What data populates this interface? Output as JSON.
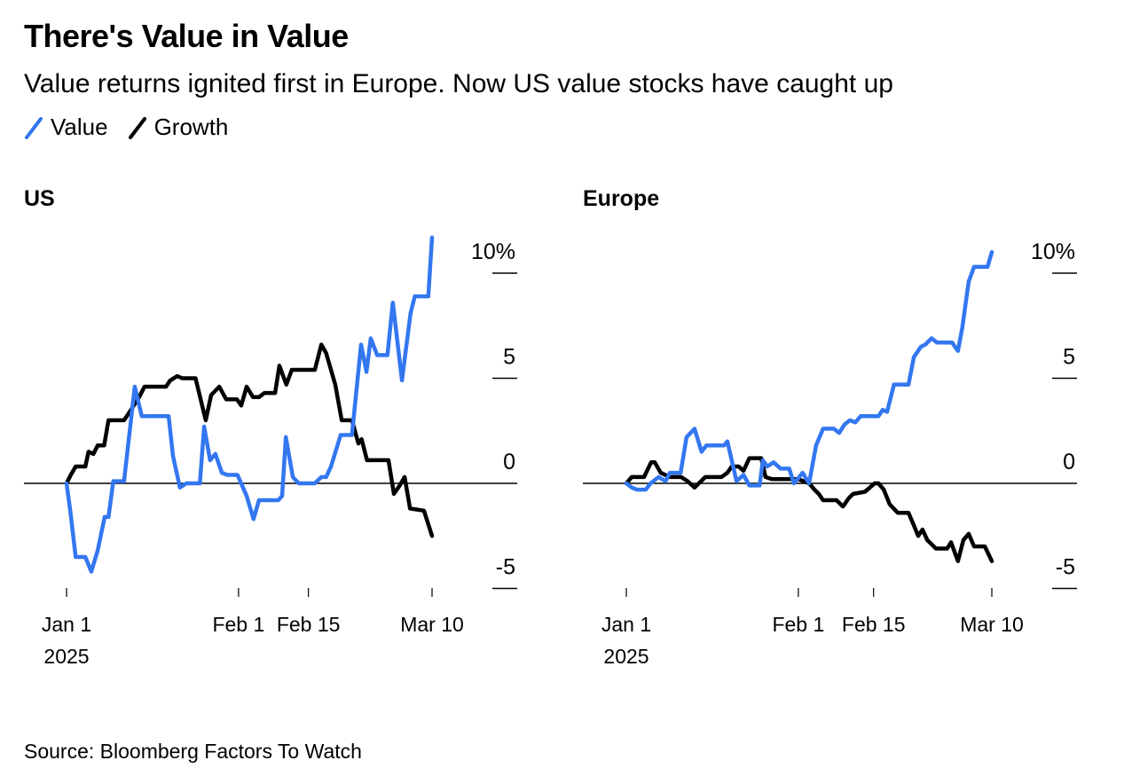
{
  "title": "There's Value in Value",
  "subtitle": "Value returns ignited first in Europe. Now US value stocks have caught up",
  "legend": [
    {
      "label": "Value",
      "color": "#3377f0"
    },
    {
      "label": "Growth",
      "color": "#000000"
    }
  ],
  "source": "Source: Bloomberg Factors To Watch",
  "chart_data": [
    {
      "type": "line",
      "title": "US",
      "xlabel": "",
      "ylabel": "",
      "x_unit": "days since Jan 1 2025",
      "xlim": [
        0,
        68
      ],
      "ylim": [
        -5,
        12
      ],
      "y_ticks": [
        10,
        5,
        0,
        -5
      ],
      "y_tick_labels": [
        "10%",
        "5",
        "0",
        "-5"
      ],
      "x_ticks": [
        0,
        32,
        45,
        68
      ],
      "x_tick_labels": [
        [
          "Jan 1",
          "2025"
        ],
        [
          "Feb 1"
        ],
        [
          "Feb 15"
        ],
        [
          "Mar 10"
        ]
      ],
      "zero_line": true,
      "grid": false,
      "series": [
        {
          "name": "Value",
          "color": "#3377f0",
          "points": [
            [
              0,
              0
            ],
            [
              0.7,
              -1.3
            ],
            [
              1.7,
              -3.5
            ],
            [
              3.5,
              -3.5
            ],
            [
              4.6,
              -4.2
            ],
            [
              5.8,
              -3.2
            ],
            [
              7.1,
              -1.6
            ],
            [
              7.8,
              -1.6
            ],
            [
              8.7,
              0.1
            ],
            [
              10.7,
              0.1
            ],
            [
              12.7,
              4.6
            ],
            [
              14,
              3.2
            ],
            [
              15.7,
              3.2
            ],
            [
              16.5,
              3.2
            ],
            [
              19,
              3.2
            ],
            [
              19.8,
              1.3
            ],
            [
              21.1,
              -0.2
            ],
            [
              22.3,
              0
            ],
            [
              24.8,
              0
            ],
            [
              25.6,
              2.7
            ],
            [
              26.7,
              1.1
            ],
            [
              27.7,
              1.4
            ],
            [
              28.9,
              0.5
            ],
            [
              29.9,
              0.4
            ],
            [
              31.8,
              0.4
            ],
            [
              33.5,
              -0.6
            ],
            [
              34.8,
              -1.7
            ],
            [
              35.8,
              -0.8
            ],
            [
              39.4,
              -0.8
            ],
            [
              40.1,
              -0.6
            ],
            [
              40.8,
              2.2
            ],
            [
              42.1,
              0.3
            ],
            [
              43.2,
              0
            ],
            [
              46.2,
              0
            ],
            [
              47.4,
              0.3
            ],
            [
              48.3,
              0.3
            ],
            [
              49.2,
              0.8
            ],
            [
              51,
              2.3
            ],
            [
              53.1,
              2.3
            ],
            [
              53.6,
              3.6
            ],
            [
              54.8,
              6.6
            ],
            [
              55.8,
              5.3
            ],
            [
              56.6,
              6.9
            ],
            [
              57.8,
              6.1
            ],
            [
              59.7,
              6.1
            ],
            [
              60.7,
              8.6
            ],
            [
              62.4,
              4.9
            ],
            [
              64,
              8.1
            ],
            [
              64.8,
              8.9
            ],
            [
              67.3,
              8.9
            ],
            [
              68,
              11.7
            ]
          ]
        },
        {
          "name": "Growth",
          "color": "#000000",
          "points": [
            [
              0,
              0
            ],
            [
              0.8,
              0.4
            ],
            [
              1.7,
              0.8
            ],
            [
              3.5,
              0.8
            ],
            [
              4.1,
              1.5
            ],
            [
              5,
              1.4
            ],
            [
              5.8,
              1.8
            ],
            [
              7,
              1.8
            ],
            [
              7.8,
              3.0
            ],
            [
              10.7,
              3.0
            ],
            [
              12,
              3.5
            ],
            [
              13.5,
              4.1
            ],
            [
              14.5,
              4.6
            ],
            [
              18.5,
              4.6
            ],
            [
              19.3,
              4.9
            ],
            [
              20.6,
              5.1
            ],
            [
              21.5,
              5.0
            ],
            [
              24,
              5.0
            ],
            [
              25.9,
              3.0
            ],
            [
              26.9,
              4.2
            ],
            [
              28.4,
              4.6
            ],
            [
              29.7,
              4.0
            ],
            [
              31.7,
              4.0
            ],
            [
              32.5,
              3.7
            ],
            [
              33.5,
              4.6
            ],
            [
              34.7,
              4.1
            ],
            [
              35.8,
              4.1
            ],
            [
              36.8,
              4.3
            ],
            [
              38.8,
              4.3
            ],
            [
              39.6,
              5.6
            ],
            [
              40.9,
              4.7
            ],
            [
              41.9,
              5.4
            ],
            [
              43.7,
              5.4
            ],
            [
              46.2,
              5.4
            ],
            [
              47.4,
              6.6
            ],
            [
              48.3,
              6.2
            ],
            [
              50,
              4.7
            ],
            [
              51.2,
              3.0
            ],
            [
              53.1,
              3.0
            ],
            [
              54.3,
              1.9
            ],
            [
              54.9,
              2.1
            ],
            [
              55.9,
              1.1
            ],
            [
              57.8,
              1.1
            ],
            [
              59.9,
              1.1
            ],
            [
              60.9,
              -0.5
            ],
            [
              62,
              -0.1
            ],
            [
              62.9,
              0.3
            ],
            [
              63.9,
              -1.2
            ],
            [
              66.5,
              -1.3
            ],
            [
              68,
              -2.5
            ]
          ]
        }
      ]
    },
    {
      "type": "line",
      "title": "Europe",
      "xlabel": "",
      "ylabel": "",
      "x_unit": "days since Jan 1 2025",
      "xlim": [
        0,
        68
      ],
      "ylim": [
        -5,
        12
      ],
      "y_ticks": [
        10,
        5,
        0,
        -5
      ],
      "y_tick_labels": [
        "10%",
        "5",
        "0",
        "-5"
      ],
      "x_ticks": [
        0,
        32,
        46,
        68
      ],
      "x_tick_labels": [
        [
          "Jan 1",
          "2025"
        ],
        [
          "Feb 1"
        ],
        [
          "Feb 15"
        ],
        [
          "Mar 10"
        ]
      ],
      "zero_line": true,
      "grid": false,
      "series": [
        {
          "name": "Value",
          "color": "#3377f0",
          "points": [
            [
              0,
              0
            ],
            [
              1,
              -0.2
            ],
            [
              2,
              -0.3
            ],
            [
              3.6,
              -0.3
            ],
            [
              4.5,
              0
            ],
            [
              6,
              0.3
            ],
            [
              7.3,
              0.1
            ],
            [
              8.1,
              0.5
            ],
            [
              10.1,
              0.5
            ],
            [
              11.2,
              2.2
            ],
            [
              12.7,
              2.6
            ],
            [
              14,
              1.5
            ],
            [
              14.9,
              1.8
            ],
            [
              18.2,
              1.8
            ],
            [
              18.8,
              2.0
            ],
            [
              20.5,
              0.1
            ],
            [
              21.8,
              0.4
            ],
            [
              22.9,
              -0.1
            ],
            [
              24.8,
              -0.1
            ],
            [
              25.4,
              1.1
            ],
            [
              26.2,
              0.8
            ],
            [
              27.4,
              1.0
            ],
            [
              28.7,
              0.7
            ],
            [
              30.3,
              0.7
            ],
            [
              31.2,
              0
            ],
            [
              32.8,
              0.5
            ],
            [
              34,
              0
            ],
            [
              35.3,
              1.8
            ],
            [
              36.6,
              2.6
            ],
            [
              38.6,
              2.6
            ],
            [
              39.6,
              2.4
            ],
            [
              40.6,
              2.8
            ],
            [
              41.6,
              3.0
            ],
            [
              42.6,
              2.9
            ],
            [
              43.6,
              3.2
            ],
            [
              46.9,
              3.2
            ],
            [
              47.7,
              3.5
            ],
            [
              48.5,
              3.4
            ],
            [
              49.8,
              4.7
            ],
            [
              52.5,
              4.7
            ],
            [
              53.5,
              6.0
            ],
            [
              54.8,
              6.5
            ],
            [
              55.6,
              6.6
            ],
            [
              56.8,
              6.9
            ],
            [
              57.8,
              6.7
            ],
            [
              60.6,
              6.7
            ],
            [
              61.7,
              6.3
            ],
            [
              62.5,
              7.4
            ],
            [
              63.7,
              9.6
            ],
            [
              64.7,
              10.3
            ],
            [
              67.2,
              10.3
            ],
            [
              68,
              11.0
            ]
          ]
        },
        {
          "name": "Growth",
          "color": "#000000",
          "points": [
            [
              0,
              0
            ],
            [
              1,
              0.3
            ],
            [
              3.3,
              0.3
            ],
            [
              4.6,
              1.0
            ],
            [
              5.3,
              1.0
            ],
            [
              6.4,
              0.5
            ],
            [
              8.1,
              0.3
            ],
            [
              10.2,
              0.3
            ],
            [
              11.4,
              0.1
            ],
            [
              12.7,
              -0.2
            ],
            [
              14.7,
              0.3
            ],
            [
              17.7,
              0.3
            ],
            [
              18.8,
              0.5
            ],
            [
              19.6,
              0.8
            ],
            [
              20.9,
              0.8
            ],
            [
              21.8,
              0.6
            ],
            [
              22.9,
              1.2
            ],
            [
              25.1,
              1.2
            ],
            [
              25.9,
              0.3
            ],
            [
              27.1,
              0.2
            ],
            [
              29.5,
              0.2
            ],
            [
              32,
              0.2
            ],
            [
              34,
              0
            ],
            [
              35,
              -0.3
            ],
            [
              35.8,
              -0.5
            ],
            [
              36.6,
              -0.8
            ],
            [
              39.1,
              -0.8
            ],
            [
              40.3,
              -1.1
            ],
            [
              41.4,
              -0.7
            ],
            [
              42.2,
              -0.5
            ],
            [
              44.4,
              -0.4
            ],
            [
              46.2,
              0
            ],
            [
              46.9,
              0
            ],
            [
              47.9,
              -0.3
            ],
            [
              49,
              -1.0
            ],
            [
              50.5,
              -1.4
            ],
            [
              52.5,
              -1.4
            ],
            [
              53.5,
              -2.0
            ],
            [
              54.3,
              -2.5
            ],
            [
              55.1,
              -2.2
            ],
            [
              56,
              -2.7
            ],
            [
              57.6,
              -3.1
            ],
            [
              59.7,
              -3.1
            ],
            [
              60.4,
              -2.8
            ],
            [
              61.7,
              -3.7
            ],
            [
              62.7,
              -2.7
            ],
            [
              63.7,
              -2.4
            ],
            [
              64.7,
              -3.0
            ],
            [
              66.7,
              -3.0
            ],
            [
              68,
              -3.7
            ]
          ]
        }
      ]
    }
  ]
}
